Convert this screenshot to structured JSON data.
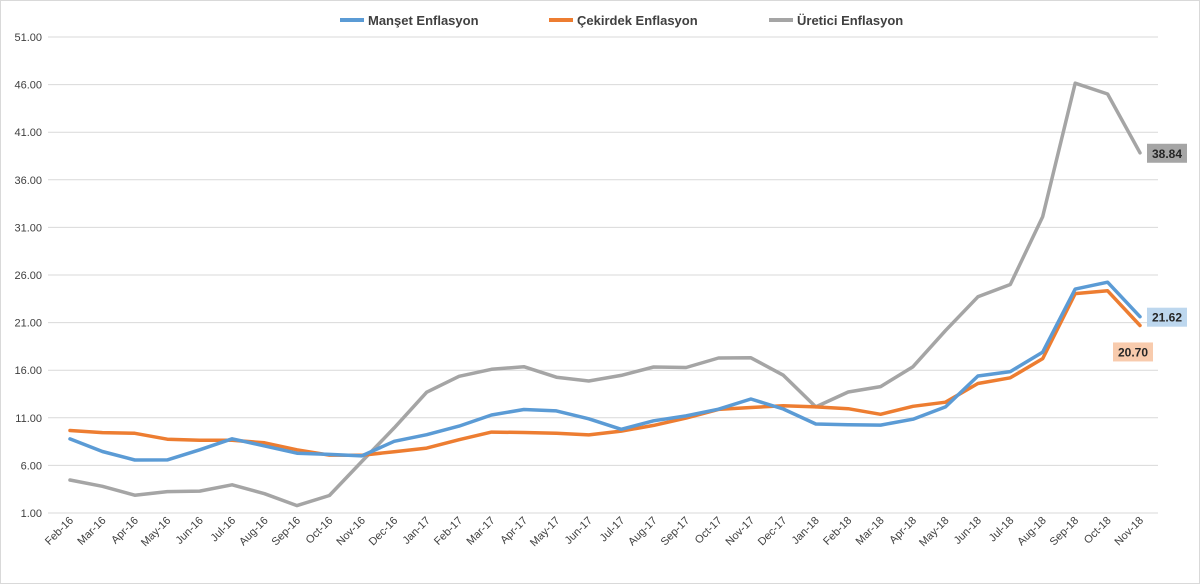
{
  "chart_data": {
    "type": "line",
    "title": "",
    "xlabel": "",
    "ylabel": "",
    "categories": [
      "Feb-16",
      "Mar-16",
      "Apr-16",
      "May-16",
      "Jun-16",
      "Jul-16",
      "Aug-16",
      "Sep-16",
      "Oct-16",
      "Nov-16",
      "Dec-16",
      "Jan-17",
      "Feb-17",
      "Mar-17",
      "Apr-17",
      "May-17",
      "Jun-17",
      "Jul-17",
      "Aug-17",
      "Sep-17",
      "Oct-17",
      "Nov-17",
      "Dec-17",
      "Jan-18",
      "Feb-18",
      "Mar-18",
      "Apr-18",
      "May-18",
      "Jun-18",
      "Jul-18",
      "Aug-18",
      "Sep-18",
      "Oct-18",
      "Nov-18"
    ],
    "yticks": [
      "1.00",
      "6.00",
      "11.00",
      "16.00",
      "21.00",
      "26.00",
      "31.00",
      "36.00",
      "41.00",
      "46.00",
      "51.00"
    ],
    "ylim": [
      1,
      51
    ],
    "grid": true,
    "legend_position": "top",
    "series": [
      {
        "name": "Manşet Enflasyon",
        "color": "#5b9bd5",
        "end_label": "21.62",
        "end_label_bg": "#bdd7ee",
        "values": [
          8.78,
          7.46,
          6.57,
          6.58,
          7.64,
          8.79,
          8.05,
          7.28,
          7.16,
          7.0,
          8.53,
          9.22,
          10.13,
          11.29,
          11.87,
          11.72,
          10.9,
          9.79,
          10.68,
          11.2,
          11.9,
          12.98,
          11.92,
          10.35,
          10.26,
          10.23,
          10.85,
          12.15,
          15.39,
          15.85,
          17.9,
          24.52,
          25.24,
          21.62
        ]
      },
      {
        "name": "Çekirdek Enflasyon",
        "color": "#ed7d31",
        "end_label": "20.70",
        "end_label_bg": "#f8cbad",
        "values": [
          9.67,
          9.45,
          9.37,
          8.75,
          8.64,
          8.64,
          8.37,
          7.64,
          7.08,
          7.06,
          7.44,
          7.82,
          8.7,
          9.5,
          9.46,
          9.37,
          9.2,
          9.6,
          10.2,
          10.98,
          11.88,
          12.08,
          12.27,
          12.14,
          11.96,
          11.37,
          12.21,
          12.64,
          14.6,
          15.2,
          17.22,
          24.05,
          24.34,
          20.7
        ]
      },
      {
        "name": "Üretici Enflasyon",
        "color": "#a5a5a5",
        "end_label": "38.84",
        "end_label_bg": "#a5a5a5",
        "values": [
          4.47,
          3.8,
          2.87,
          3.25,
          3.3,
          3.96,
          3.03,
          1.78,
          2.84,
          6.41,
          9.94,
          13.69,
          15.36,
          16.09,
          16.37,
          15.26,
          14.87,
          15.45,
          16.34,
          16.28,
          17.28,
          17.3,
          15.47,
          12.14,
          13.71,
          14.28,
          16.37,
          20.16,
          23.71,
          25.0,
          32.13,
          46.15,
          45.01,
          38.84
        ]
      }
    ]
  }
}
